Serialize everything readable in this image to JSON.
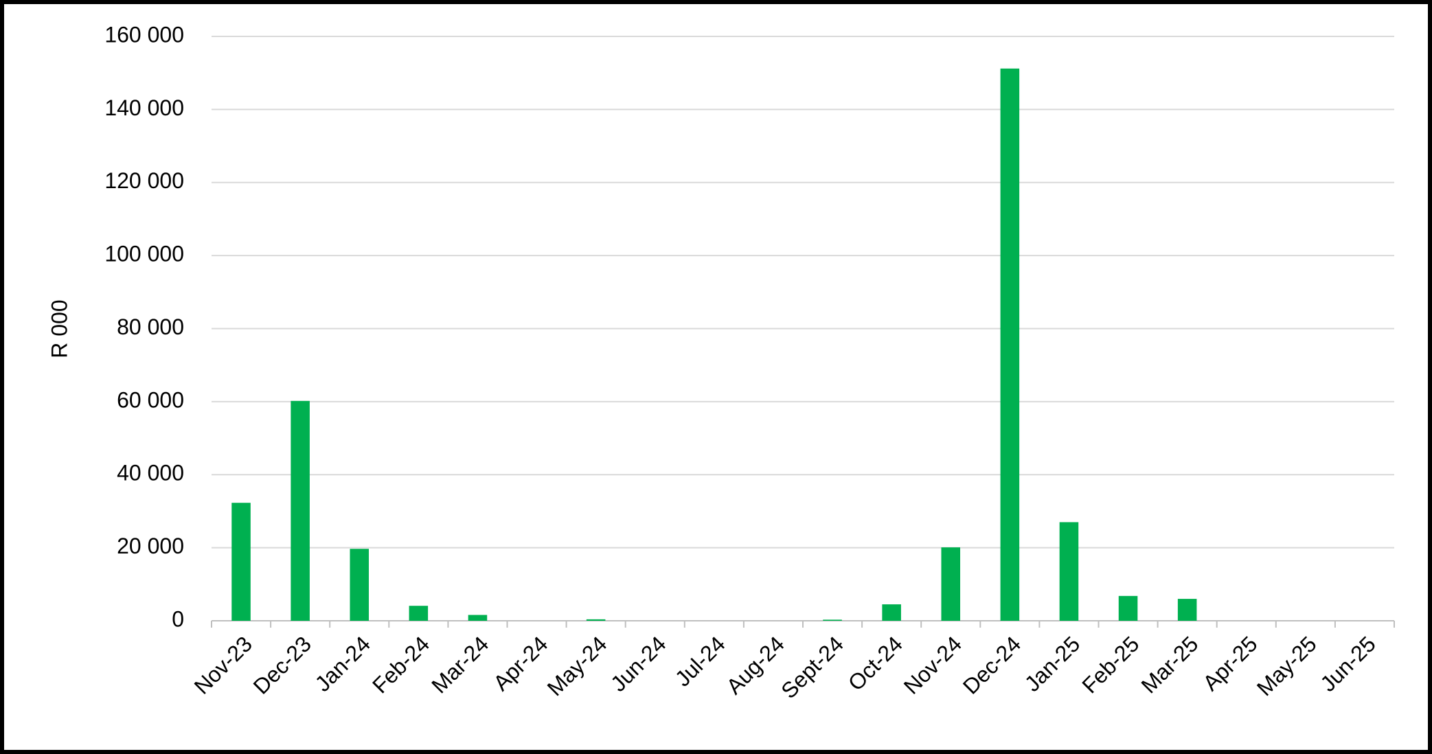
{
  "chart_data": {
    "type": "bar",
    "y_label": "R 000",
    "categories": [
      "Nov-23",
      "Dec-23",
      "Jan-24",
      "Feb-24",
      "Mar-24",
      "Apr-24",
      "May-24",
      "Jun-24",
      "Jul-24",
      "Aug-24",
      "Sept-24",
      "Oct-24",
      "Nov-24",
      "Dec-24",
      "Jan-25",
      "Feb-25",
      "Mar-25",
      "Apr-25",
      "May-25",
      "Jun-25"
    ],
    "values": [
      32300,
      60200,
      19700,
      4100,
      1600,
      0,
      400,
      0,
      0,
      0,
      300,
      4500,
      20100,
      151200,
      27000,
      6800,
      6000,
      0,
      0,
      0
    ],
    "color": "#00b050",
    "ylim": [
      0,
      160000
    ],
    "yticks": [
      0,
      {
        "value": 20000,
        "label": "20 000"
      },
      {
        "value": 40000,
        "label": "40 000"
      },
      {
        "value": 60000,
        "label": "60 000"
      },
      {
        "value": 80000,
        "label": "80 000"
      },
      {
        "value": 100000,
        "label": "100 000"
      },
      {
        "value": 120000,
        "label": "120 000"
      },
      {
        "value": 140000,
        "label": "140 000"
      },
      {
        "value": 160000,
        "label": "160 000"
      }
    ],
    "grid": true
  }
}
